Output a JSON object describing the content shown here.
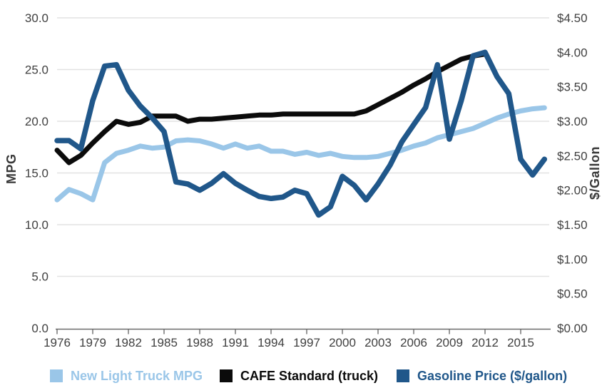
{
  "chart_data": {
    "type": "line",
    "x": [
      1976,
      1977,
      1978,
      1979,
      1980,
      1981,
      1982,
      1983,
      1984,
      1985,
      1986,
      1987,
      1988,
      1989,
      1990,
      1991,
      1992,
      1993,
      1994,
      1995,
      1996,
      1997,
      1998,
      1999,
      2000,
      2001,
      2002,
      2003,
      2004,
      2005,
      2006,
      2007,
      2008,
      2009,
      2010,
      2011,
      2012,
      2013,
      2014,
      2015,
      2016,
      2017
    ],
    "x_tick_years": [
      1976,
      1979,
      1982,
      1985,
      1988,
      1991,
      1994,
      1997,
      2000,
      2003,
      2006,
      2009,
      2012,
      2015
    ],
    "left_axis": {
      "title": "MPG",
      "min": 0,
      "max": 30,
      "tick_step": 5,
      "tick_labels": [
        "0.0",
        "5.0",
        "10.0",
        "15.0",
        "20.0",
        "25.0",
        "30.0"
      ]
    },
    "right_axis": {
      "title": "$/Gallon",
      "min": 0,
      "max": 4.5,
      "tick_step": 0.5,
      "tick_labels": [
        "$0.00",
        "$0.50",
        "$1.00",
        "$1.50",
        "$2.00",
        "$2.50",
        "$3.00",
        "$3.50",
        "$4.00",
        "$4.50"
      ]
    },
    "grid_on": true,
    "grid_color": "#e2e2e2",
    "axis_line_color": "#6b6b6b",
    "tick_text_color": "#404040",
    "legend_position": "bottom",
    "series": [
      {
        "name": "New Light Truck MPG",
        "axis": "left",
        "color": "#9AC6E8",
        "line_width": 7,
        "values": [
          12.4,
          13.4,
          13.0,
          12.4,
          16.0,
          16.9,
          17.2,
          17.6,
          17.4,
          17.5,
          18.1,
          18.2,
          18.1,
          17.8,
          17.4,
          17.8,
          17.4,
          17.6,
          17.1,
          17.1,
          16.8,
          17.0,
          16.7,
          16.9,
          16.6,
          16.5,
          16.5,
          16.6,
          16.9,
          17.2,
          17.6,
          17.9,
          18.4,
          18.7,
          19.0,
          19.3,
          19.8,
          20.3,
          20.7,
          21.0,
          21.2,
          21.3
        ]
      },
      {
        "name": "CAFE Standard (truck)",
        "axis": "left",
        "color": "#0b0b0b",
        "line_width": 7,
        "values": [
          17.2,
          16.0,
          16.7,
          17.9,
          19.0,
          20.0,
          19.7,
          19.9,
          20.5,
          20.5,
          20.5,
          20.0,
          20.2,
          20.2,
          20.3,
          20.4,
          20.5,
          20.6,
          20.6,
          20.7,
          20.7,
          20.7,
          20.7,
          20.7,
          20.7,
          20.7,
          21.0,
          21.6,
          22.2,
          22.8,
          23.5,
          24.1,
          24.8,
          25.4,
          26.0,
          26.3,
          26.5,
          null,
          null,
          null,
          null,
          null
        ]
      },
      {
        "name": "Gasoline Price ($/gallon)",
        "axis": "right",
        "color": "#20578A",
        "line_width": 7.5,
        "values": [
          2.72,
          2.72,
          2.6,
          3.3,
          3.8,
          3.82,
          3.45,
          3.22,
          3.05,
          2.85,
          2.12,
          2.09,
          2.0,
          2.1,
          2.24,
          2.1,
          2.0,
          1.91,
          1.88,
          1.9,
          2.0,
          1.95,
          1.64,
          1.76,
          2.2,
          2.07,
          1.86,
          2.09,
          2.36,
          2.7,
          2.95,
          3.2,
          3.82,
          2.74,
          3.3,
          3.95,
          4.0,
          3.65,
          3.4,
          2.45,
          2.22,
          2.45
        ]
      }
    ]
  },
  "legend": {
    "items": [
      {
        "label": "New Light Truck MPG",
        "color": "#9AC6E8"
      },
      {
        "label": "CAFE Standard (truck)",
        "color": "#0b0b0b"
      },
      {
        "label": "Gasoline Price ($/gallon)",
        "color": "#20578A"
      }
    ]
  }
}
